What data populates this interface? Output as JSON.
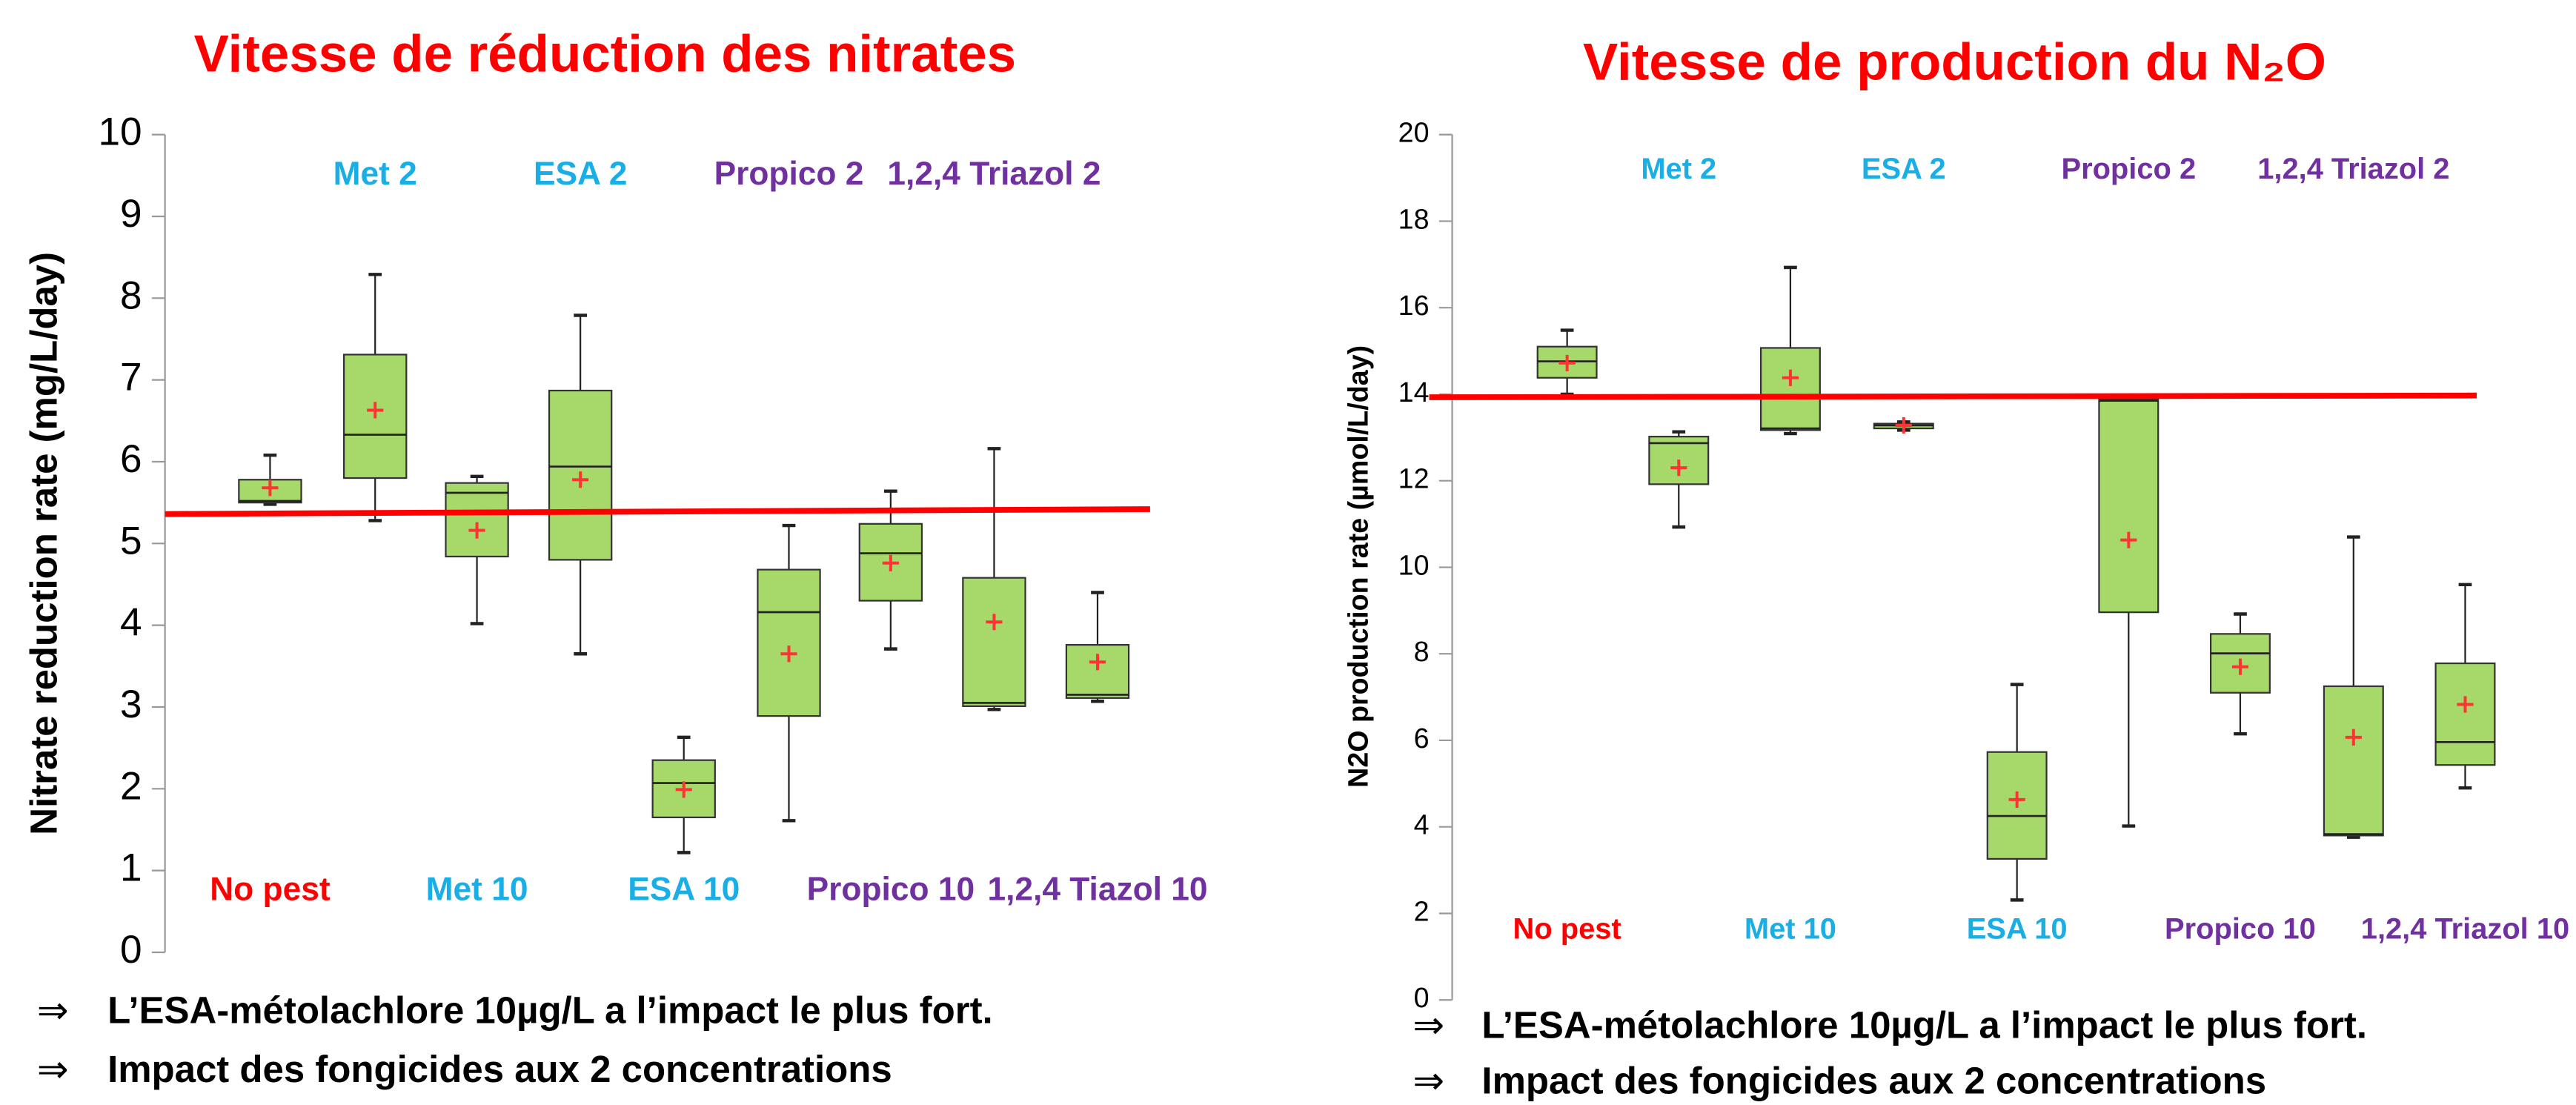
{
  "chart_data": [
    {
      "type": "box",
      "title": "Vitesse de réduction des nitrates",
      "y_label": "Nitrate reduction rate (mg/L/day)",
      "categories": [
        "No pest",
        "Met 2",
        "Met 10",
        "ESA 2",
        "ESA 10",
        "Propico 2",
        "Propico 10",
        "1,2,4 Triazol 2",
        "1,2,4 Tiazol 10"
      ],
      "label_colors": [
        "#ff0000",
        "#1aaee6",
        "#1aaee6",
        "#1aaee6",
        "#1aaee6",
        "#7030a0",
        "#7030a0",
        "#7030a0",
        "#7030a0"
      ],
      "min": [
        5.48,
        5.28,
        4.02,
        3.65,
        1.22,
        1.61,
        3.71,
        2.97,
        3.07
      ],
      "q1": [
        5.5,
        5.8,
        4.84,
        4.8,
        1.65,
        2.89,
        4.3,
        3.01,
        3.11
      ],
      "median": [
        5.52,
        6.33,
        5.62,
        5.94,
        2.07,
        4.16,
        4.88,
        3.05,
        3.15
      ],
      "q3": [
        5.78,
        7.31,
        5.74,
        6.87,
        2.35,
        4.68,
        5.24,
        4.58,
        3.76
      ],
      "max": [
        6.08,
        8.29,
        5.82,
        7.79,
        2.63,
        5.22,
        5.64,
        6.16,
        4.4
      ],
      "mean": [
        5.68,
        6.63,
        5.16,
        5.78,
        1.99,
        3.65,
        4.76,
        4.04,
        3.55
      ],
      "box_color": "#a6d96a",
      "mean_color": "#ff3333",
      "ref_line": [
        5.36,
        5.42
      ],
      "ref_color": "#ff0000",
      "ylim": [
        0,
        10
      ],
      "yticks": [
        0,
        1,
        2,
        3,
        4,
        5,
        6,
        7,
        8,
        9,
        10
      ],
      "note_marker": "⇒",
      "notes": [
        "L’ESA-métolachlore 10µg/L a l’impact le plus fort.",
        "Impact des fongicides aux 2 concentrations"
      ]
    },
    {
      "type": "box",
      "title": "Vitesse de production du N₂O",
      "y_label": "N2O production rate (µmol/L/day)",
      "categories": [
        "No pest",
        "Met 2",
        "Met 10",
        "ESA 2",
        "ESA 10",
        "Propico 2",
        "Propico 10",
        "1,2,4 Triazol 2",
        "1,2,4 Triazol 10"
      ],
      "label_colors": [
        "#ff0000",
        "#1aaee6",
        "#1aaee6",
        "#1aaee6",
        "#1aaee6",
        "#7030a0",
        "#7030a0",
        "#7030a0",
        "#7030a0"
      ],
      "min": [
        14.0,
        10.93,
        13.09,
        13.17,
        2.31,
        4.02,
        6.15,
        3.76,
        4.9
      ],
      "q1": [
        14.38,
        11.92,
        13.17,
        13.21,
        3.26,
        8.96,
        7.1,
        3.8,
        5.43
      ],
      "median": [
        14.76,
        12.87,
        13.21,
        13.28,
        4.25,
        13.85,
        8.01,
        3.83,
        5.96
      ],
      "q3": [
        15.1,
        13.02,
        15.07,
        13.32,
        5.73,
        13.88,
        8.46,
        7.25,
        7.78
      ],
      "max": [
        15.48,
        13.13,
        16.93,
        13.36,
        7.29,
        13.93,
        8.92,
        10.7,
        9.6
      ],
      "mean": [
        14.72,
        12.3,
        14.38,
        13.28,
        4.63,
        10.63,
        7.7,
        6.07,
        6.83
      ],
      "box_color": "#a6d96a",
      "mean_color": "#ff3333",
      "ref_line": [
        13.93,
        13.97
      ],
      "ref_color": "#ff0000",
      "ylim": [
        0,
        20
      ],
      "yticks": [
        0,
        2,
        4,
        6,
        8,
        10,
        12,
        14,
        16,
        18,
        20
      ],
      "note_marker": "⇒",
      "notes": [
        "L’ESA-métolachlore 10µg/L a l’impact le plus fort.",
        "Impact des fongicides aux 2 concentrations"
      ]
    }
  ]
}
